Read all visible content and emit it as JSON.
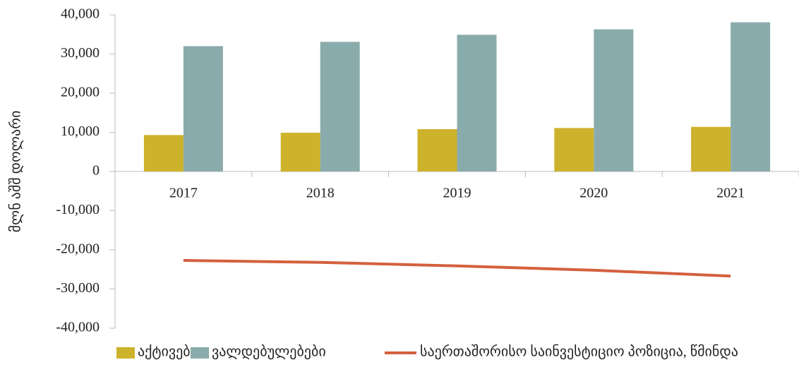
{
  "chart_data": {
    "type": "bar",
    "y_label": "მლნ აშშ დოლარი",
    "categories": [
      "2017",
      "2018",
      "2019",
      "2020",
      "2021"
    ],
    "series": [
      {
        "name": "აქტივები",
        "type": "bar",
        "color": "#cdb22b",
        "values": [
          9300,
          9900,
          10800,
          11100,
          11400
        ]
      },
      {
        "name": "ვალდებულებები",
        "type": "bar",
        "color": "#8aabab",
        "values": [
          32000,
          33100,
          34900,
          36300,
          38100
        ]
      },
      {
        "name": "საერთაშორისო საინვესტიციო პოზიცია, წმინდა",
        "type": "line",
        "color": "#d4603e",
        "values": [
          -22700,
          -23200,
          -24100,
          -25200,
          -26700
        ]
      }
    ],
    "ylim": [
      -40000,
      40000
    ],
    "yticks": [
      {
        "value": -40000,
        "label": "-40,000"
      },
      {
        "value": -30000,
        "label": "-30,000"
      },
      {
        "value": -20000,
        "label": "-20,000"
      },
      {
        "value": -10000,
        "label": "-10,000"
      },
      0,
      {
        "value": 10000,
        "label": "10,000"
      },
      {
        "value": 20000,
        "label": "20,000"
      },
      {
        "value": 30000,
        "label": "30,000"
      },
      {
        "value": 40000,
        "label": "40,000"
      }
    ],
    "legend": "bottom"
  }
}
